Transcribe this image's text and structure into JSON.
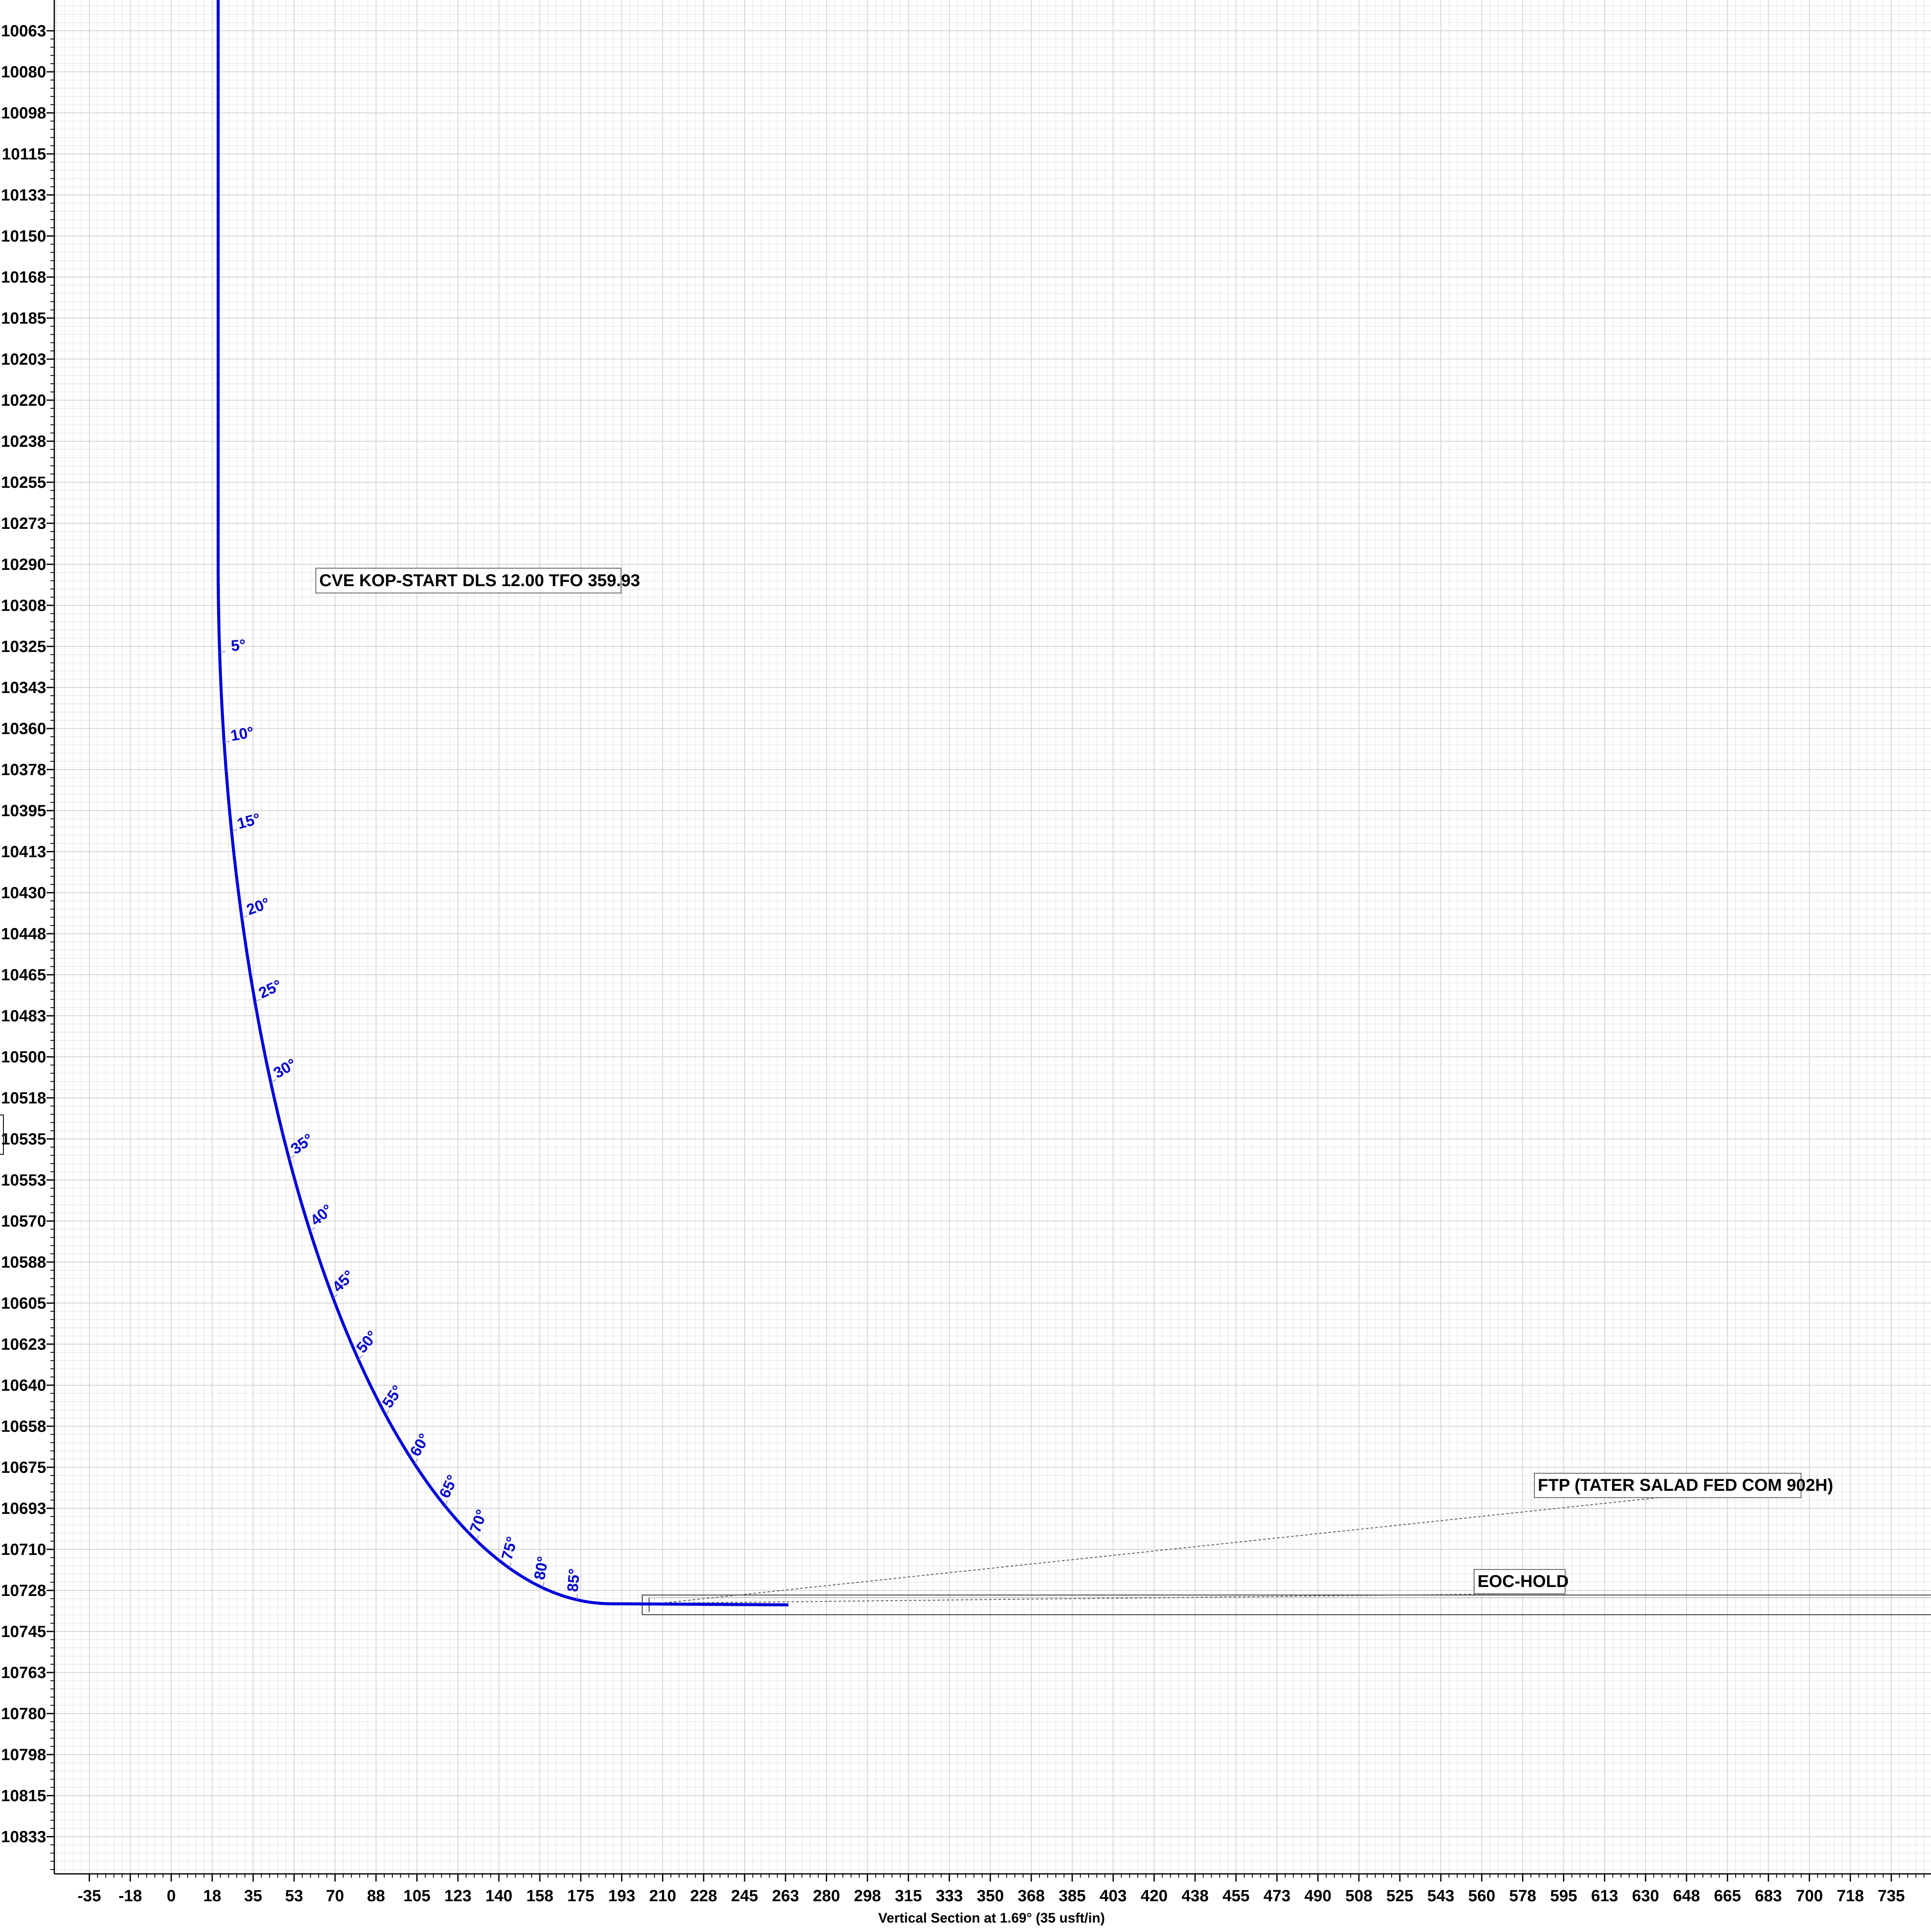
{
  "chart_data": {
    "type": "line",
    "title": "",
    "xlabel": "Vertical Section at 1.69° (35 usft/in)",
    "ylabel": "",
    "xlim": [
      -55,
      750
    ],
    "ylim": [
      10050,
      10875
    ],
    "y_inverted": true,
    "grid": true,
    "x_ticks": [
      "-35",
      "-18",
      "0",
      "18",
      "35",
      "53",
      "70",
      "88",
      "105",
      "123",
      "140",
      "158",
      "175",
      "193",
      "210",
      "228",
      "245",
      "263",
      "280",
      "298",
      "315",
      "333",
      "350",
      "368",
      "385",
      "403",
      "420",
      "438",
      "455",
      "473",
      "490",
      "508",
      "525",
      "543",
      "560",
      "578",
      "595",
      "613",
      "630",
      "648",
      "665",
      "683",
      "700",
      "718",
      "735"
    ],
    "y_ticks": [
      "10063",
      "10080",
      "10098",
      "10115",
      "10133",
      "10150",
      "10168",
      "10185",
      "10203",
      "10220",
      "10238",
      "10255",
      "10273",
      "10290",
      "10308",
      "10325",
      "10343",
      "10360",
      "10378",
      "10395",
      "10413",
      "10430",
      "10448",
      "10465",
      "10483",
      "10500",
      "10518",
      "10535",
      "10553",
      "10570",
      "10588",
      "10605",
      "10623",
      "10640",
      "10658",
      "10675",
      "10693",
      "10710",
      "10728",
      "10745",
      "10763",
      "10780",
      "10798",
      "10815",
      "10833"
    ],
    "series": [
      {
        "color": "#0000dd",
        "kop": {
          "vs": 57.3,
          "tvd": 10306
        },
        "radius_ft": 477.5,
        "hold_end": {
          "vs": 750,
          "tvd": 10784
        }
      }
    ],
    "inclination_labels": [
      {
        "deg": 5,
        "text": "5°"
      },
      {
        "deg": 10,
        "text": "10°"
      },
      {
        "deg": 15,
        "text": "15°"
      },
      {
        "deg": 20,
        "text": "20°"
      },
      {
        "deg": 25,
        "text": "25°"
      },
      {
        "deg": 30,
        "text": "30°"
      },
      {
        "deg": 35,
        "text": "35°"
      },
      {
        "deg": 40,
        "text": "40°"
      },
      {
        "deg": 45,
        "text": "45°"
      },
      {
        "deg": 50,
        "text": "50°"
      },
      {
        "deg": 55,
        "text": "55°"
      },
      {
        "deg": 60,
        "text": "60°"
      },
      {
        "deg": 65,
        "text": "65°"
      },
      {
        "deg": 70,
        "text": "70°"
      },
      {
        "deg": 75,
        "text": "75°"
      },
      {
        "deg": 80,
        "text": "80°"
      },
      {
        "deg": 85,
        "text": "85°"
      }
    ],
    "annotations": [
      {
        "text": "CVE KOP-START DLS 12.00 TFO 359.93",
        "at": {
          "vs": 57.3,
          "tvd": 10306
        }
      },
      {
        "text": "EOC-HOLD",
        "at": {
          "vs": 534.8,
          "tvd": 10783.5
        }
      },
      {
        "text": "FTP (TATER SALAD FED COM 902H)",
        "at": {
          "vs": 584,
          "tvd": 10783.7
        }
      }
    ]
  }
}
